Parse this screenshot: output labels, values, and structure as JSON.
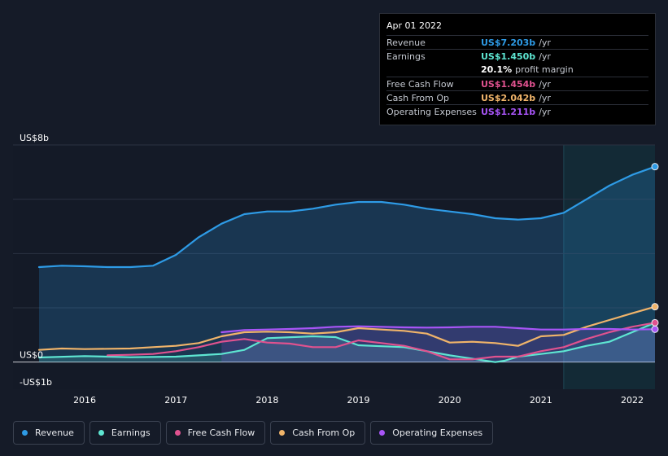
{
  "tooltip": {
    "date": "Apr 01 2022",
    "rows": [
      {
        "label": "Revenue",
        "value": "US$7.203b",
        "unit": "/yr",
        "color": "#2e9be6"
      },
      {
        "label": "Earnings",
        "value": "US$1.450b",
        "unit": "/yr",
        "color": "#5ee6d2"
      },
      {
        "label": "",
        "value": "20.1%",
        "unit": "profit margin",
        "color": "#ffffff"
      },
      {
        "label": "Free Cash Flow",
        "value": "US$1.454b",
        "unit": "/yr",
        "color": "#e0528f"
      },
      {
        "label": "Cash From Op",
        "value": "US$2.042b",
        "unit": "/yr",
        "color": "#f0b46a"
      },
      {
        "label": "Operating Expenses",
        "value": "US$1.211b",
        "unit": "/yr",
        "color": "#a855f7"
      }
    ]
  },
  "chart_data": {
    "type": "area",
    "x_ticks": [
      "2016",
      "2017",
      "2018",
      "2019",
      "2020",
      "2021",
      "2022"
    ],
    "y_tick_labels": [
      {
        "value": 8,
        "label": "US$8b"
      },
      {
        "value": 0,
        "label": "US$0"
      },
      {
        "value": -1,
        "label": "-US$1b"
      }
    ],
    "ylim": [
      -1,
      8
    ],
    "xlim": [
      2015.5,
      2022.25
    ],
    "gridlines": [
      8,
      6,
      4,
      2,
      0
    ],
    "highlight_start": 2021.25,
    "series": [
      {
        "name": "Revenue",
        "color": "#2e9be6",
        "fill": true,
        "marker": true,
        "x": [
          2015.5,
          2015.75,
          2016.0,
          2016.25,
          2016.5,
          2016.75,
          2017.0,
          2017.25,
          2017.5,
          2017.75,
          2018.0,
          2018.25,
          2018.5,
          2018.75,
          2019.0,
          2019.25,
          2019.5,
          2019.75,
          2020.0,
          2020.25,
          2020.5,
          2020.75,
          2021.0,
          2021.25,
          2021.5,
          2021.75,
          2022.0,
          2022.25
        ],
        "y": [
          3.5,
          3.55,
          3.53,
          3.5,
          3.5,
          3.55,
          3.95,
          4.6,
          5.1,
          5.45,
          5.55,
          5.55,
          5.65,
          5.8,
          5.9,
          5.9,
          5.8,
          5.65,
          5.55,
          5.45,
          5.3,
          5.25,
          5.3,
          5.5,
          6.0,
          6.5,
          6.9,
          7.2
        ]
      },
      {
        "name": "Earnings",
        "color": "#5ee6d2",
        "fill": true,
        "marker": false,
        "x": [
          2015.5,
          2016.0,
          2016.5,
          2017.0,
          2017.5,
          2017.75,
          2018.0,
          2018.5,
          2018.75,
          2019.0,
          2019.5,
          2020.0,
          2020.5,
          2020.6,
          2020.75,
          2021.0,
          2021.25,
          2021.5,
          2021.75,
          2022.0,
          2022.25
        ],
        "y": [
          0.17,
          0.22,
          0.18,
          0.2,
          0.3,
          0.45,
          0.88,
          0.95,
          0.92,
          0.62,
          0.55,
          0.25,
          0.0,
          0.05,
          0.2,
          0.3,
          0.4,
          0.6,
          0.75,
          1.1,
          1.45
        ]
      },
      {
        "name": "Free Cash Flow",
        "color": "#e0528f",
        "fill": false,
        "marker": true,
        "x": [
          2016.25,
          2016.5,
          2016.75,
          2017.0,
          2017.25,
          2017.5,
          2017.75,
          2018.0,
          2018.25,
          2018.5,
          2018.75,
          2019.0,
          2019.25,
          2019.5,
          2019.75,
          2020.0,
          2020.25,
          2020.5,
          2020.75,
          2021.0,
          2021.25,
          2021.5,
          2021.75,
          2022.0,
          2022.25
        ],
        "y": [
          0.25,
          0.27,
          0.3,
          0.4,
          0.55,
          0.75,
          0.85,
          0.72,
          0.68,
          0.55,
          0.55,
          0.8,
          0.7,
          0.6,
          0.4,
          0.1,
          0.1,
          0.2,
          0.2,
          0.4,
          0.55,
          0.85,
          1.1,
          1.3,
          1.45
        ]
      },
      {
        "name": "Cash From Op",
        "color": "#f0b46a",
        "fill": false,
        "marker": true,
        "x": [
          2015.5,
          2015.75,
          2016.0,
          2016.5,
          2016.75,
          2017.0,
          2017.25,
          2017.5,
          2017.75,
          2018.0,
          2018.25,
          2018.5,
          2018.75,
          2019.0,
          2019.25,
          2019.5,
          2019.75,
          2020.0,
          2020.25,
          2020.5,
          2020.75,
          2021.0,
          2021.25,
          2021.5,
          2021.75,
          2022.0,
          2022.25
        ],
        "y": [
          0.45,
          0.5,
          0.48,
          0.5,
          0.55,
          0.6,
          0.7,
          0.95,
          1.1,
          1.12,
          1.1,
          1.05,
          1.1,
          1.25,
          1.2,
          1.15,
          1.05,
          0.72,
          0.75,
          0.7,
          0.6,
          0.95,
          1.0,
          1.3,
          1.55,
          1.8,
          2.04
        ]
      },
      {
        "name": "Operating Expenses",
        "color": "#a855f7",
        "fill": true,
        "marker": true,
        "x": [
          2017.5,
          2017.75,
          2018.0,
          2018.25,
          2018.5,
          2018.75,
          2019.0,
          2019.25,
          2019.5,
          2019.75,
          2020.0,
          2020.25,
          2020.5,
          2020.75,
          2021.0,
          2021.25,
          2021.5,
          2021.75,
          2022.0,
          2022.25
        ],
        "y": [
          1.1,
          1.18,
          1.2,
          1.22,
          1.25,
          1.3,
          1.32,
          1.3,
          1.28,
          1.27,
          1.28,
          1.3,
          1.3,
          1.25,
          1.2,
          1.2,
          1.22,
          1.22,
          1.2,
          1.21
        ]
      }
    ]
  },
  "legend": [
    {
      "label": "Revenue",
      "color": "#2e9be6"
    },
    {
      "label": "Earnings",
      "color": "#5ee6d2"
    },
    {
      "label": "Free Cash Flow",
      "color": "#e0528f"
    },
    {
      "label": "Cash From Op",
      "color": "#f0b46a"
    },
    {
      "label": "Operating Expenses",
      "color": "#a855f7"
    }
  ]
}
